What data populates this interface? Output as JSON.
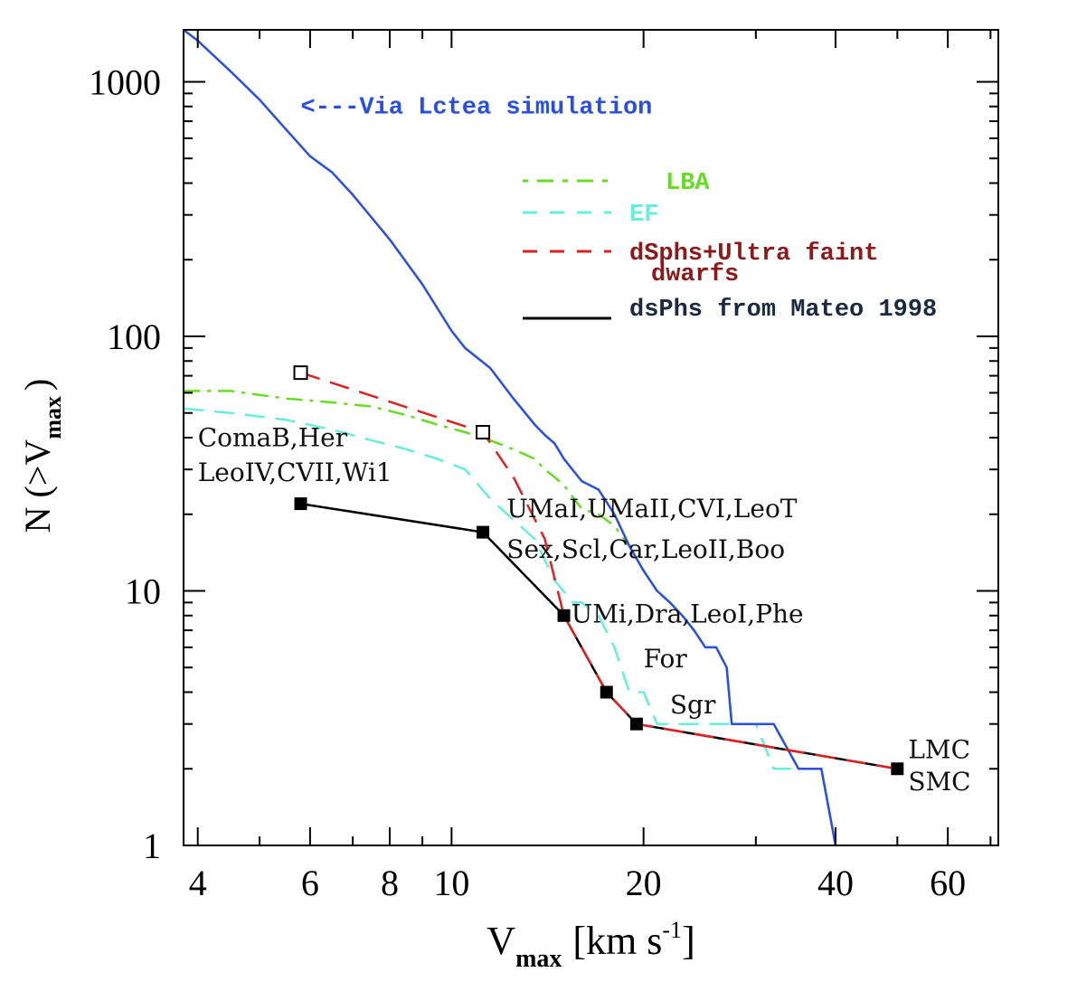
{
  "chart_data": {
    "type": "line",
    "xscale": "log",
    "yscale": "log",
    "xlim": [
      3.8,
      72
    ],
    "ylim": [
      1,
      1600
    ],
    "xlabel": {
      "main": "V",
      "sub": "max",
      "unit": "[km s",
      "exp": "-1",
      "close": "]"
    },
    "ylabel": {
      "main": "N (>V",
      "sub": "max",
      "close": ")"
    },
    "x_tick_labels": [
      4,
      6,
      8,
      10,
      20,
      40,
      60
    ],
    "y_tick_labels": [
      1,
      10,
      100,
      1000
    ],
    "colors": {
      "via_lactea": "#2a4fe0",
      "lba": "#66dd22",
      "ef": "#66eedd",
      "dsphs_ultra": "#dd2222",
      "mateo": "#000000",
      "legend_ultra_text": "#8b1a1a",
      "legend_mateo_text": "#1a2a40"
    },
    "series": [
      {
        "name": "Via Lctea simulation",
        "style": "solid",
        "x": [
          3.8,
          4.0,
          4.5,
          5.0,
          5.5,
          6.0,
          6.5,
          7.0,
          8.0,
          9.0,
          10.0,
          10.5,
          11.5,
          12.5,
          13.5,
          14.0,
          14.5,
          15.0,
          16.0,
          17.0,
          18.0,
          19.0,
          20.0,
          21.0,
          22.0,
          23.0,
          24.0,
          25.0,
          26.0,
          27.0,
          27.5,
          30.0,
          32.0,
          35.0,
          38.0,
          40.0
        ],
        "y": [
          1600,
          1450,
          1100,
          850,
          650,
          510,
          440,
          360,
          240,
          160,
          105,
          90,
          75,
          57,
          45,
          41,
          38,
          33,
          27,
          25,
          20,
          15,
          12,
          10,
          9,
          8,
          7,
          6,
          6,
          5,
          3,
          3,
          3,
          2,
          2,
          1
        ]
      },
      {
        "name": "LBA",
        "style": "dashdot",
        "x": [
          3.8,
          4.5,
          5.5,
          6.5,
          7.5,
          8.5,
          9.5,
          10.5,
          11.5,
          12.5,
          13.5,
          14.0,
          14.5,
          15.0,
          16.0,
          17.0,
          18.0,
          19.0,
          20.0,
          21.0,
          22.0,
          23.0,
          24.0,
          25.0,
          26.0,
          27.0,
          27.5,
          30.0,
          32.0,
          35.0,
          38.0,
          40.0
        ],
        "y": [
          61,
          61,
          57,
          55,
          53,
          49,
          45,
          42,
          39,
          36,
          33,
          30,
          28,
          26,
          21,
          20,
          18,
          15,
          12,
          10,
          9,
          8,
          7,
          6,
          6,
          5,
          3,
          3,
          3,
          2,
          2,
          1
        ]
      },
      {
        "name": "EF",
        "style": "dashed",
        "x": [
          3.8,
          4.5,
          5.5,
          6.5,
          7.5,
          8.5,
          9.5,
          10.5,
          11.5,
          12.5,
          13.5,
          14.5,
          15.5,
          16.0,
          17.0,
          18.0,
          19.0,
          20.0,
          21.0,
          22.0,
          25.0,
          30.0,
          32.0,
          35.0,
          38.0,
          40.0
        ],
        "y": [
          52,
          50,
          47,
          43,
          39,
          36,
          33,
          30,
          23,
          19,
          16,
          11,
          9,
          9,
          8,
          6,
          4,
          4,
          3,
          3,
          3,
          3,
          2,
          2,
          2,
          1
        ]
      },
      {
        "name": "dSphs+Ultra faint dwarfs",
        "style": "dashed",
        "marker": "open-square",
        "x": [
          5.8,
          11.2,
          12.5,
          14.0,
          15.0,
          17.5,
          19.5,
          50.0
        ],
        "y": [
          72,
          42,
          28,
          16,
          8,
          4,
          3,
          2
        ]
      },
      {
        "name": "dsPhs from Mateo 1998",
        "style": "solid",
        "marker": "filled-square",
        "x": [
          5.8,
          11.2,
          15.0,
          17.5,
          19.5,
          50.0
        ],
        "y": [
          22,
          17,
          8,
          4,
          3,
          2
        ]
      }
    ],
    "legend": {
      "placement": "top-right",
      "items": [
        {
          "label": "LBA",
          "color": "#66dd22",
          "style": "dashdot"
        },
        {
          "label": "EF",
          "color": "#66eedd",
          "style": "dashed"
        },
        {
          "label": "dSphs+Ultra faint",
          "label2": "dwarfs",
          "color": "#dd2222",
          "style": "dashed"
        },
        {
          "label": "dsPhs from Mateo 1998",
          "color": "#000000",
          "style": "solid"
        }
      ]
    },
    "annotations": [
      {
        "id": "via-lactea-label",
        "text": "<---Via Lctea simulation",
        "color": "#2a4fe0",
        "x": 5.8,
        "y": 750
      },
      {
        "id": "comab-her",
        "text": "ComaB,Her",
        "x": 4.0,
        "y": 37
      },
      {
        "id": "leoiv-cvii-wi1",
        "text": "LeoIV,CVII,Wi1",
        "x": 4.0,
        "y": 27
      },
      {
        "id": "umai-umaii",
        "text": "UMaI,UMaII,CVI,LeoT",
        "x": 12.2,
        "y": 19.5
      },
      {
        "id": "sex-scl",
        "text": "Sex,Scl,Car,LeoII,Boo",
        "x": 12.2,
        "y": 13.5
      },
      {
        "id": "umi-dra",
        "text": "UMi,Dra,LeoI,Phe",
        "x": 15.4,
        "y": 7.5
      },
      {
        "id": "for",
        "text": "For",
        "x": 20.0,
        "y": 5.0
      },
      {
        "id": "sgr",
        "text": "Sgr",
        "x": 22.0,
        "y": 3.3
      },
      {
        "id": "lmc",
        "text": "LMC",
        "x": 52.0,
        "y": 2.2
      },
      {
        "id": "smc",
        "text": "SMC",
        "x": 52.0,
        "y": 1.65
      }
    ]
  }
}
